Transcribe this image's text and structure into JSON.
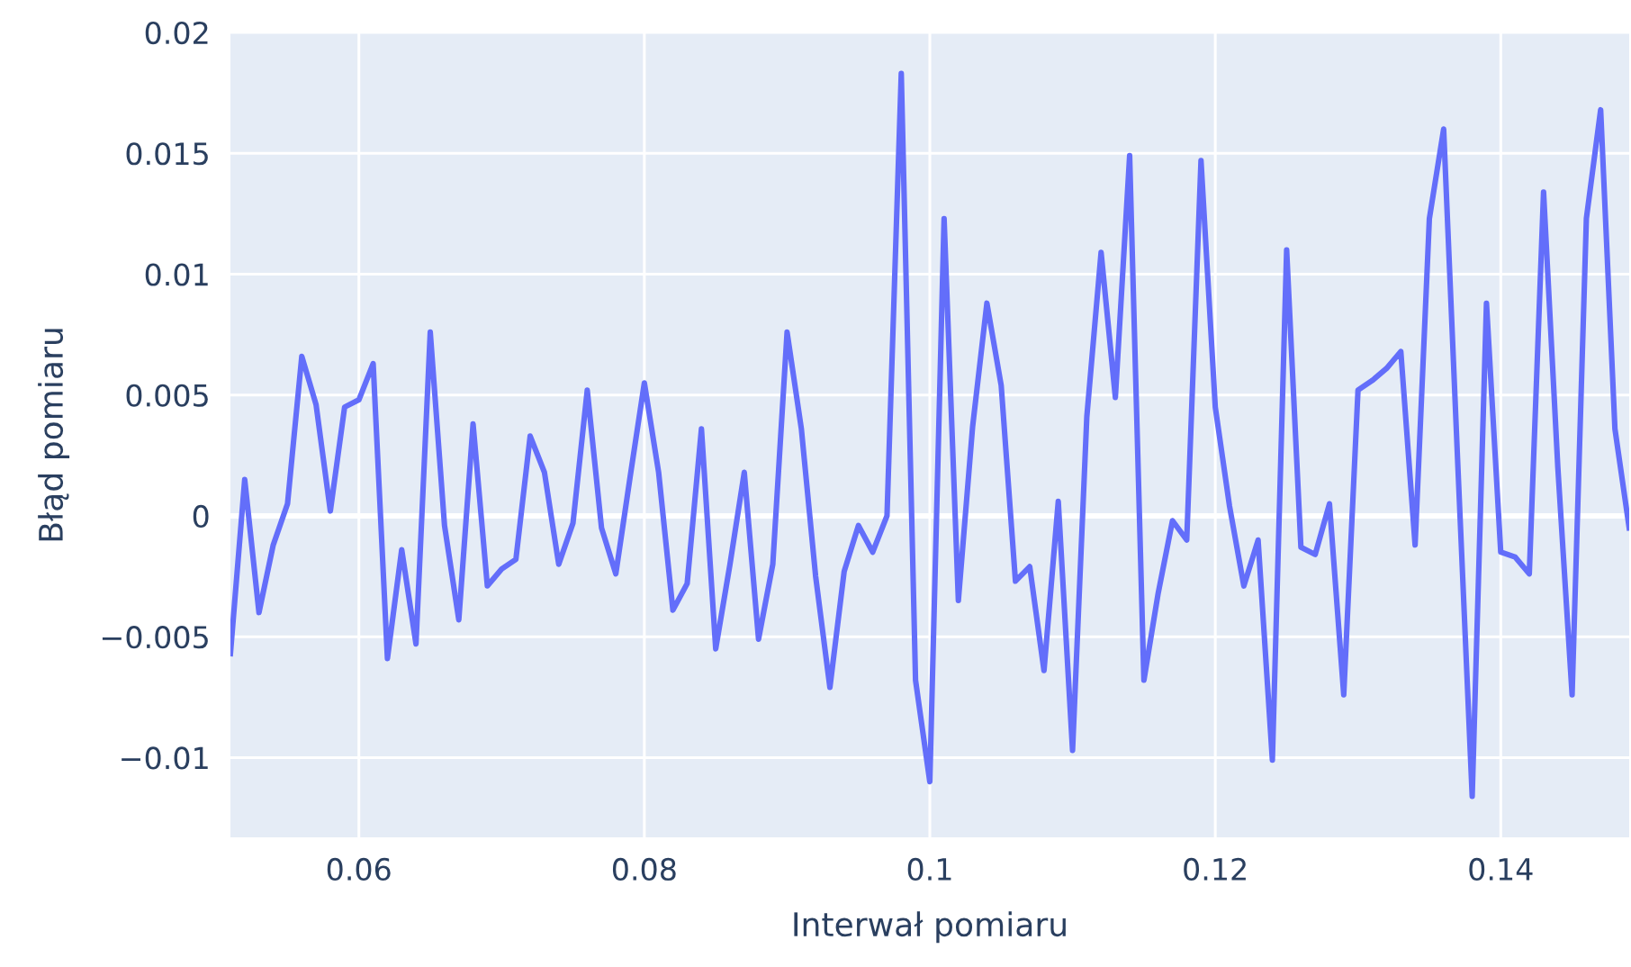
{
  "chart_data": {
    "type": "line",
    "xlabel": "Interwał pomiaru",
    "ylabel": "Błąd pomiaru",
    "x": [
      0.051,
      0.052,
      0.053,
      0.054,
      0.055,
      0.056,
      0.057,
      0.058,
      0.059,
      0.06,
      0.061,
      0.062,
      0.063,
      0.064,
      0.065,
      0.066,
      0.067,
      0.068,
      0.069,
      0.07,
      0.071,
      0.072,
      0.073,
      0.074,
      0.075,
      0.076,
      0.077,
      0.078,
      0.079,
      0.08,
      0.081,
      0.082,
      0.083,
      0.084,
      0.085,
      0.086,
      0.087,
      0.088,
      0.089,
      0.09,
      0.091,
      0.092,
      0.093,
      0.094,
      0.095,
      0.096,
      0.097,
      0.098,
      0.099,
      0.1,
      0.101,
      0.102,
      0.103,
      0.104,
      0.105,
      0.106,
      0.107,
      0.108,
      0.109,
      0.11,
      0.111,
      0.112,
      0.113,
      0.114,
      0.115,
      0.116,
      0.117,
      0.118,
      0.119,
      0.12,
      0.121,
      0.122,
      0.123,
      0.124,
      0.125,
      0.126,
      0.127,
      0.128,
      0.129,
      0.13,
      0.131,
      0.132,
      0.133,
      0.134,
      0.135,
      0.136,
      0.137,
      0.138,
      0.139,
      0.14,
      0.141,
      0.142,
      0.143,
      0.144,
      0.145,
      0.146,
      0.147,
      0.148,
      0.149
    ],
    "series": [
      {
        "color": "#636efa",
        "values": [
          -0.0057,
          0.0015,
          -0.004,
          -0.0012,
          0.0005,
          0.0066,
          0.0046,
          0.0002,
          0.0045,
          0.0048,
          0.0063,
          -0.0059,
          -0.0014,
          -0.0053,
          0.0076,
          -0.0004,
          -0.0043,
          0.0038,
          -0.0029,
          -0.0022,
          -0.0018,
          0.0033,
          0.0018,
          -0.002,
          -0.0003,
          0.0052,
          -0.0005,
          -0.0024,
          0.0016,
          0.0055,
          0.0018,
          -0.0039,
          -0.0028,
          0.0036,
          -0.0055,
          -0.002,
          0.0018,
          -0.0051,
          -0.002,
          0.0076,
          0.0036,
          -0.0025,
          -0.0071,
          -0.0023,
          -0.0004,
          -0.0015,
          0.0,
          0.0183,
          -0.0068,
          -0.011,
          0.0123,
          -0.0035,
          0.0037,
          0.0088,
          0.0054,
          -0.0027,
          -0.0021,
          -0.0064,
          0.0006,
          -0.0097,
          0.0041,
          0.0109,
          0.0049,
          0.0149,
          -0.0068,
          -0.0032,
          -0.0002,
          -0.001,
          0.0147,
          0.0045,
          0.0004,
          -0.0029,
          -0.001,
          -0.0101,
          0.011,
          -0.0013,
          -0.0016,
          0.0005,
          -0.0074,
          0.0052,
          0.0056,
          0.0061,
          0.0068,
          -0.0012,
          0.0123,
          0.016,
          0.002,
          -0.0116,
          0.0088,
          -0.0015,
          -0.0017,
          -0.0024,
          0.0134,
          0.002,
          -0.0074,
          0.0123,
          0.0168,
          0.0036,
          -0.0005
        ]
      }
    ],
    "xlim": [
      0.051,
      0.149
    ],
    "ylim": [
      -0.0133,
      0.02
    ],
    "xticks": [
      0.06,
      0.08,
      0.1,
      0.12,
      0.14
    ],
    "yticks": [
      {
        "value": -0.01,
        "label": "−0.01"
      },
      {
        "value": -0.005,
        "label": "−0.005"
      },
      {
        "value": 0,
        "label": "0"
      },
      {
        "value": 0.005,
        "label": "0.005"
      },
      {
        "value": 0.01,
        "label": "0.01"
      },
      {
        "value": 0.015,
        "label": "0.015"
      },
      {
        "value": 0.02,
        "label": "0.02"
      }
    ],
    "grid": true,
    "marker": "none",
    "line_style": "solid"
  }
}
